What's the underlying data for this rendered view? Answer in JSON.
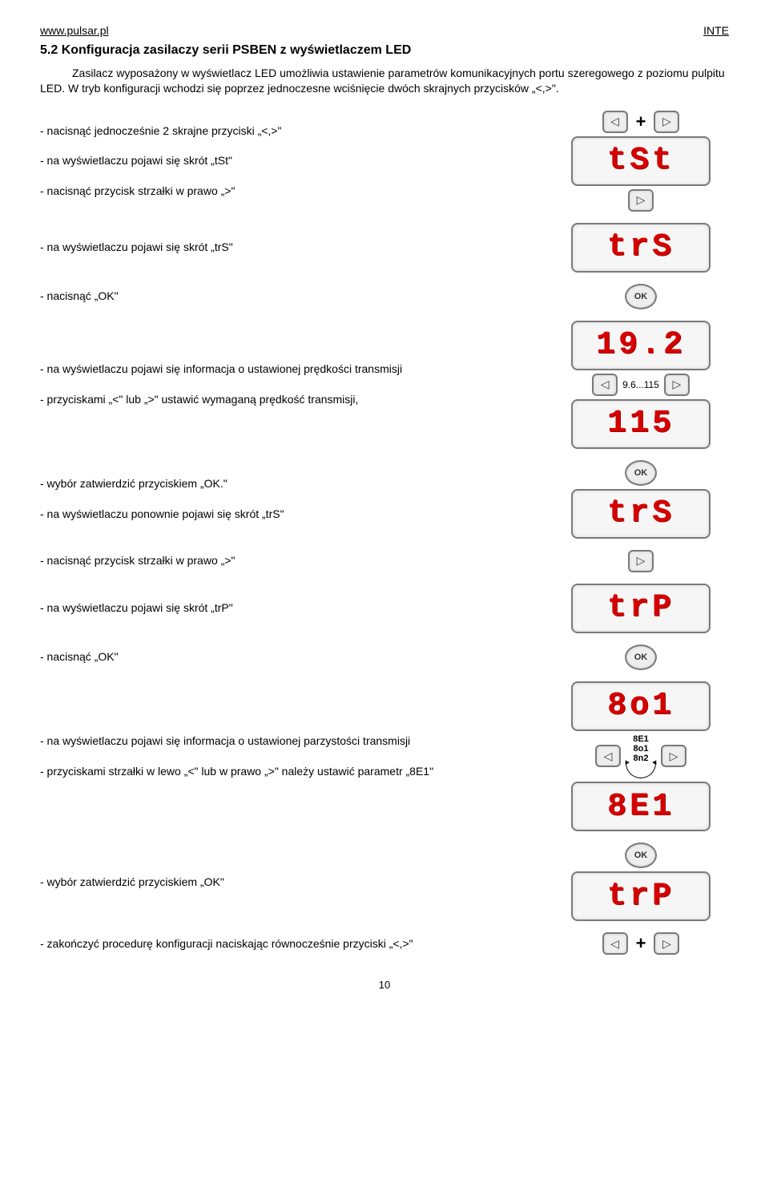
{
  "header": {
    "left": "www.pulsar.pl",
    "right": "INTE"
  },
  "title": "5.2 Konfiguracja zasilaczy serii PSBEN z wyświetlaczem LED",
  "intro": "Zasilacz wyposażony w wyświetlacz LED umożliwia ustawienie parametrów komunikacyjnych portu szeregowego z poziomu pulpitu LED. W tryb konfiguracji wchodzi się poprzez jednoczesne wciśnięcie dwóch skrajnych przycisków „<,>\".",
  "steps": {
    "s1a": "- nacisnąć jednocześnie 2 skrajne przyciski „<,>\"",
    "s1b": "- na wyświetlaczu pojawi się skrót „tSt\"",
    "s1c": "- nacisnąć przycisk strzałki w prawo „>\"",
    "s2": "- na wyświetlaczu pojawi się skrót „trS\"",
    "s3": "- nacisnąć „OK\"",
    "s4a": "- na wyświetlaczu pojawi się informacja o ustawionej prędkości transmisji",
    "s4b": "- przyciskami „<\" lub „>\" ustawić wymaganą prędkość transmisji,",
    "s5a": "- wybór zatwierdzić przyciskiem „OK.\"",
    "s5b": "- na wyświetlaczu ponownie pojawi się skrót „trS\"",
    "s6": "- nacisnąć przycisk strzałki w prawo „>\"",
    "s7": "- na wyświetlaczu pojawi się skrót „trP\"",
    "s8": "- nacisnąć „OK\"",
    "s9a": "- na wyświetlaczu pojawi się informacja o ustawionej parzystości transmisji",
    "s9b": "- przyciskami strzałki w lewo „<\" lub w prawo „>\" należy ustawić parametr „8E1\"",
    "s10": "- wybór zatwierdzić przyciskiem „OK\"",
    "s11": "- zakończyć procedurę konfiguracji naciskając równocześnie przyciski „<,>\""
  },
  "displays": {
    "tst": "tSt",
    "trs": "trS",
    "v192": "19.2",
    "v115": "115",
    "trp": "trP",
    "bo1": "8o1",
    "e81": "8E1"
  },
  "labels": {
    "speed_range": "9.6...115",
    "ok": "OK",
    "plus": "+",
    "cycle": [
      "8E1",
      "8o1",
      "8n2"
    ]
  },
  "glyphs": {
    "left": "◁",
    "right": "▷"
  },
  "page": "10"
}
